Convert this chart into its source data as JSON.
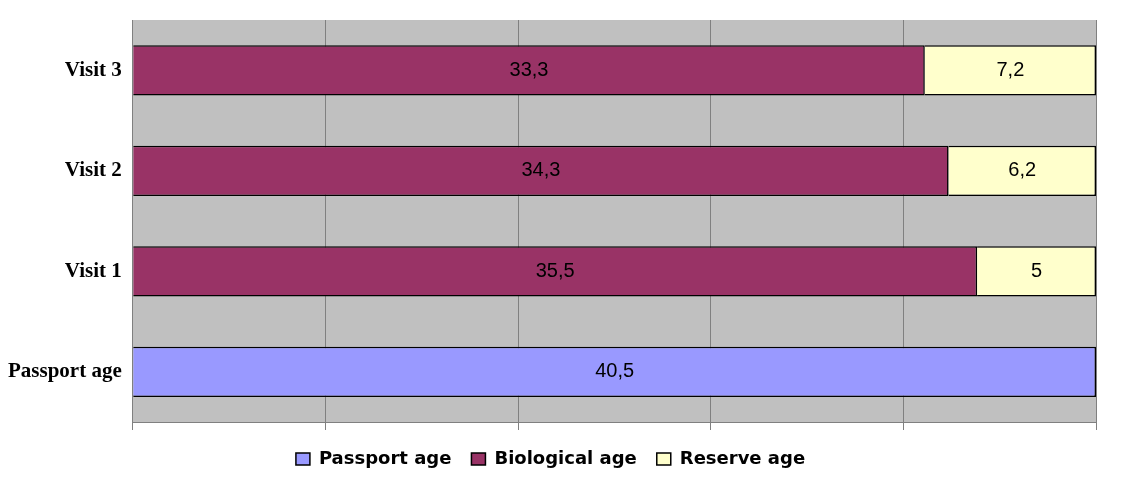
{
  "chart_data": {
    "type": "bar",
    "orientation": "horizontal",
    "stacked": true,
    "categories": [
      "Visit 3",
      "Visit 2",
      "Visit 1",
      "Passport age"
    ],
    "series": [
      {
        "name": "Passport age",
        "color": "#9999ff",
        "values": [
          null,
          null,
          null,
          40.5
        ],
        "value_labels": [
          null,
          null,
          null,
          "40,5"
        ]
      },
      {
        "name": "Biological age",
        "color": "#993366",
        "values": [
          33.3,
          34.3,
          35.5,
          null
        ],
        "value_labels": [
          "33,3",
          "34,3",
          "35,5",
          null
        ]
      },
      {
        "name": "Reserve age",
        "color": "#ffffcc",
        "values": [
          7.2,
          6.2,
          5,
          null
        ],
        "value_labels": [
          "7,2",
          "6,2",
          "5",
          null
        ]
      }
    ],
    "xlim": [
      0,
      40.5
    ],
    "xticks": [
      {
        "value": 0,
        "label": null
      },
      {
        "value": 8.1,
        "label": null
      },
      {
        "value": 16.2,
        "label": null
      },
      {
        "value": 24.3,
        "label": null
      },
      {
        "value": 32.4,
        "label": null
      },
      {
        "value": 40.5,
        "label": null
      }
    ],
    "tick_labels": "y",
    "grid": "x",
    "legend": "bottom"
  }
}
